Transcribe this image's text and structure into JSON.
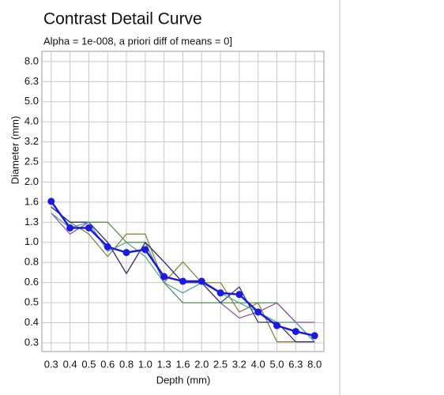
{
  "chart_data": {
    "type": "line",
    "title": "Contrast Detail Curve",
    "subtitle": "Alpha = 1e-008, a priori diff of means = 0]",
    "x_label": "Depth (mm)",
    "y_label": "Diameter (mm)",
    "log_x": true,
    "log_y": true,
    "grid": true,
    "xlim": [
      0.282,
      8.91
    ],
    "ylim": [
      0.286,
      8.93
    ],
    "xticks": [
      {
        "value": 0.316,
        "label": "0.3"
      },
      {
        "value": 0.398,
        "label": "0.4"
      },
      {
        "value": 0.501,
        "label": "0.5"
      },
      {
        "value": 0.631,
        "label": "0.6"
      },
      {
        "value": 0.794,
        "label": "0.8"
      },
      {
        "value": 1.0,
        "label": "1.0"
      },
      {
        "value": 1.259,
        "label": "1.3"
      },
      {
        "value": 1.585,
        "label": "1.6"
      },
      {
        "value": 1.995,
        "label": "2.0"
      },
      {
        "value": 2.512,
        "label": "2.5"
      },
      {
        "value": 3.162,
        "label": "3.2"
      },
      {
        "value": 3.981,
        "label": "4.0"
      },
      {
        "value": 5.012,
        "label": "5.0"
      },
      {
        "value": 6.31,
        "label": "6.3"
      },
      {
        "value": 7.95,
        "label": "8.0"
      }
    ],
    "yticks": [
      {
        "value": 0.316,
        "label": "0.3"
      },
      {
        "value": 0.398,
        "label": "0.4"
      },
      {
        "value": 0.501,
        "label": "0.5"
      },
      {
        "value": 0.631,
        "label": "0.6"
      },
      {
        "value": 0.794,
        "label": "0.8"
      },
      {
        "value": 1.0,
        "label": "1.0"
      },
      {
        "value": 1.259,
        "label": "1.3"
      },
      {
        "value": 1.585,
        "label": "1.6"
      },
      {
        "value": 1.995,
        "label": "2.0"
      },
      {
        "value": 2.512,
        "label": "2.5"
      },
      {
        "value": 3.162,
        "label": "3.2"
      },
      {
        "value": 3.981,
        "label": "4.0"
      },
      {
        "value": 5.012,
        "label": "5.0"
      },
      {
        "value": 6.31,
        "label": "6.3"
      },
      {
        "value": 7.95,
        "label": "8.0"
      }
    ],
    "x": [
      0.316,
      0.398,
      0.501,
      0.631,
      0.794,
      1.0,
      1.259,
      1.585,
      1.995,
      2.512,
      3.162,
      3.981,
      5.012,
      6.31,
      7.95
    ],
    "series": [
      {
        "color": "#4a8a4a",
        "values": [
          1.5,
          1.26,
          1.26,
          1.26,
          1.0,
          1.0,
          0.63,
          0.5,
          0.5,
          0.5,
          0.5,
          0.5,
          0.5,
          0.4,
          0.32
        ]
      },
      {
        "color": "#8a4aa0",
        "values": [
          1.4,
          1.1,
          1.26,
          1.0,
          0.7,
          1.0,
          0.8,
          0.63,
          0.63,
          0.5,
          0.42,
          0.45,
          0.5,
          0.4,
          0.4
        ]
      },
      {
        "color": "#8a7a30",
        "values": [
          1.5,
          1.26,
          1.1,
          0.85,
          1.1,
          1.1,
          0.63,
          0.8,
          0.63,
          0.63,
          0.45,
          0.5,
          0.32,
          0.32,
          0.32
        ]
      },
      {
        "color": "#303070",
        "values": [
          1.5,
          1.26,
          1.26,
          1.0,
          0.7,
          1.0,
          0.8,
          0.63,
          0.63,
          0.5,
          0.6,
          0.4,
          0.4,
          0.32,
          0.32
        ]
      },
      {
        "color": "#4aa0a0",
        "values": [
          1.4,
          1.18,
          1.26,
          0.9,
          1.0,
          0.85,
          0.63,
          0.56,
          0.63,
          0.56,
          0.5,
          0.45,
          0.4,
          0.4,
          0.32
        ]
      },
      {
        "color": "#1a1ae0",
        "markers": true,
        "values": [
          1.6,
          1.18,
          1.18,
          0.95,
          0.89,
          0.92,
          0.675,
          0.64,
          0.64,
          0.56,
          0.55,
          0.45,
          0.385,
          0.36,
          0.343
        ]
      }
    ]
  }
}
